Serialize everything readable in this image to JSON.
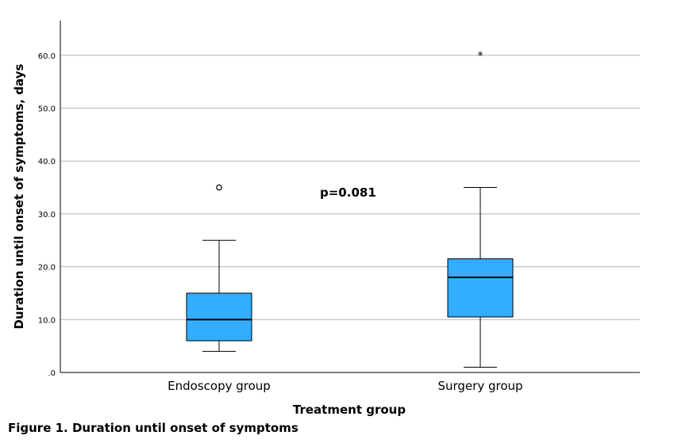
{
  "chart_data": {
    "type": "box",
    "xlabel": "Treatment group",
    "ylabel": "Duration until onset of symptoms, days",
    "ylim": [
      0,
      66
    ],
    "yticks": [
      0,
      10,
      20,
      30,
      40,
      50,
      60
    ],
    "ytick_labels": [
      ".0",
      "10.0",
      "20.0",
      "30.0",
      "40.0",
      "50.0",
      "60.0"
    ],
    "grid": "horizontal",
    "box_color": "#33adff",
    "categories": [
      "Endoscopy group",
      "Surgery group"
    ],
    "boxes": [
      {
        "category": "Endoscopy group",
        "whisker_low": 4,
        "q1": 6,
        "median": 10,
        "q3": 15,
        "whisker_high": 25,
        "outliers": [
          35
        ],
        "extremes": []
      },
      {
        "category": "Surgery group",
        "whisker_low": 1,
        "q1": 10.5,
        "median": 18,
        "q3": 21.5,
        "whisker_high": 35,
        "outliers": [],
        "extremes": [
          60
        ]
      }
    ],
    "annotations": [
      {
        "text": "p=0.081"
      }
    ]
  },
  "caption": "Figure 1. Duration until onset of symptoms"
}
